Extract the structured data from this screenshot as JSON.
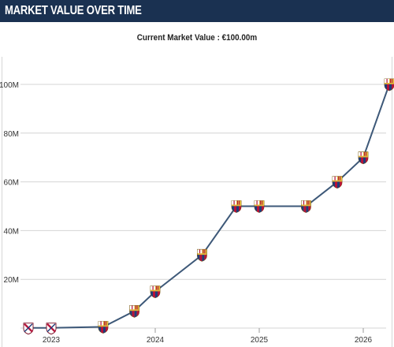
{
  "header": {
    "title": "MARKET VALUE OVER TIME"
  },
  "subtitle": "Current Market Value : €100.00m",
  "colors": {
    "header_bg": "#1a3151",
    "line": "#3d5878",
    "grid": "#d4d4d4",
    "crest_blue": "#1f3c7a",
    "crest_red": "#b5123a",
    "crest_gold": "#e0b43a"
  },
  "chart_data": {
    "type": "line",
    "title": "",
    "xlabel": "",
    "ylabel": "",
    "y_unit": "€",
    "ylim": [
      0,
      110
    ],
    "yticks": [
      {
        "value": 20,
        "label": "20M"
      },
      {
        "value": 40,
        "label": "40M"
      },
      {
        "value": 60,
        "label": "60M"
      },
      {
        "value": 80,
        "label": "80M"
      },
      {
        "value": 100,
        "label": "100M"
      }
    ],
    "xticks": [
      {
        "value": 2023.0,
        "label": "2023"
      },
      {
        "value": 2024.0,
        "label": "2024"
      },
      {
        "value": 2025.0,
        "label": "2025"
      },
      {
        "value": 2026.0,
        "label": "2026"
      }
    ],
    "xlim": [
      2022.75,
      2026.25
    ],
    "grid": true,
    "legend": "none",
    "points": [
      {
        "x": 2022.78,
        "value": 0.1,
        "club": "spain-crest-icon"
      },
      {
        "x": 2023.0,
        "value": 0.1,
        "club": "spain-crest-icon"
      },
      {
        "x": 2023.5,
        "value": 0.5,
        "club": "barcelona-crest-icon"
      },
      {
        "x": 2023.8,
        "value": 7,
        "club": "barcelona-crest-icon"
      },
      {
        "x": 2024.0,
        "value": 15,
        "club": "barcelona-crest-icon"
      },
      {
        "x": 2024.45,
        "value": 30,
        "club": "barcelona-crest-icon"
      },
      {
        "x": 2024.78,
        "value": 50,
        "club": "barcelona-crest-icon"
      },
      {
        "x": 2025.0,
        "value": 50,
        "club": "barcelona-crest-icon"
      },
      {
        "x": 2025.45,
        "value": 50,
        "club": "barcelona-crest-icon"
      },
      {
        "x": 2025.75,
        "value": 60,
        "club": "barcelona-crest-icon"
      },
      {
        "x": 2026.0,
        "value": 70,
        "club": "barcelona-crest-icon"
      },
      {
        "x": 2026.25,
        "value": 100,
        "club": "barcelona-crest-icon"
      }
    ]
  }
}
